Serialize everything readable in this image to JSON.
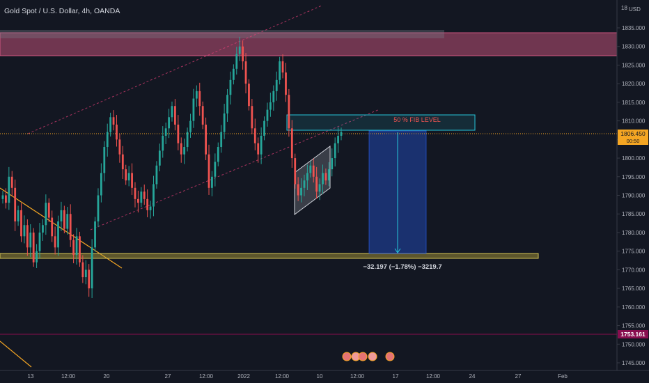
{
  "header": {
    "title": "Gold Spot / U.S. Dollar, 4h, OANDA"
  },
  "axis": {
    "currency": "USD",
    "currency_prefix": "18",
    "y_ticks": [
      "1835.000",
      "1830.000",
      "1825.000",
      "1820.000",
      "1815.000",
      "1810.000",
      "1805.000",
      "1800.000",
      "1795.000",
      "1790.000",
      "1785.000",
      "1780.000",
      "1775.000",
      "1770.000",
      "1765.000",
      "1760.000",
      "1755.000",
      "1750.000",
      "1745.000"
    ],
    "x_ticks": [
      "13",
      "12:00",
      "20",
      "27",
      "12:00",
      "2022",
      "12:00",
      "10",
      "12:00",
      "17",
      "12:00",
      "24",
      "27",
      "Feb"
    ]
  },
  "price_tags": {
    "current_price": "1806.450",
    "countdown": "00:50",
    "low_price": "1753.161"
  },
  "annotations": {
    "fib_label": "50 % FIB LEVEL",
    "measure_label": "−32.197 (−1.78%) −3219.7"
  },
  "colors": {
    "background": "#131722",
    "up": "#26a69a",
    "down": "#ef5350",
    "zone_pink": "#f06292",
    "zone_yellow": "#b8a53a",
    "fib_box": "#26c6da",
    "short_target": "#2962ff",
    "channel": "#ec407a",
    "trendline": "#f5a623",
    "price_line": "#f5a623",
    "low_tag": "#880e4f"
  },
  "chart_data": {
    "type": "candlestick",
    "symbol": "XAUUSD",
    "timeframe": "4h",
    "ylim": [
      1744,
      1838
    ],
    "zones": [
      {
        "kind": "resistance",
        "from": 1827.5,
        "to": 1833.5
      },
      {
        "kind": "support",
        "from": 1774.5,
        "to": 1775.5
      },
      {
        "kind": "fib-50",
        "from": 1808.0,
        "to": 1812.0
      }
    ],
    "projection": {
      "from": 1808.0,
      "to": 1774.5,
      "change": -32.197,
      "change_pct": -1.78
    },
    "close_path": [
      1790,
      1788,
      1795,
      1792,
      1783,
      1786,
      1779,
      1782,
      1776,
      1780,
      1772,
      1775,
      1780,
      1782,
      1788,
      1784,
      1779,
      1776,
      1783,
      1786,
      1781,
      1785,
      1778,
      1774,
      1779,
      1772,
      1768,
      1770,
      1765,
      1776,
      1783,
      1790,
      1796,
      1803,
      1807,
      1811,
      1809,
      1805,
      1801,
      1797,
      1794,
      1796,
      1792,
      1789,
      1788,
      1791,
      1789,
      1786,
      1787,
      1793,
      1798,
      1802,
      1806,
      1808,
      1811,
      1814,
      1809,
      1804,
      1801,
      1803,
      1807,
      1810,
      1816,
      1818,
      1814,
      1809,
      1801,
      1792,
      1795,
      1799,
      1803,
      1807,
      1812,
      1817,
      1821,
      1824,
      1828,
      1830,
      1826,
      1820,
      1814,
      1808,
      1804,
      1801,
      1806,
      1810,
      1813,
      1815,
      1818,
      1821,
      1826,
      1823,
      1817,
      1808,
      1800,
      1793,
      1790,
      1792,
      1794,
      1796,
      1798,
      1795,
      1791,
      1793,
      1796,
      1794,
      1797,
      1800,
      1804,
      1806,
      1807
    ]
  }
}
